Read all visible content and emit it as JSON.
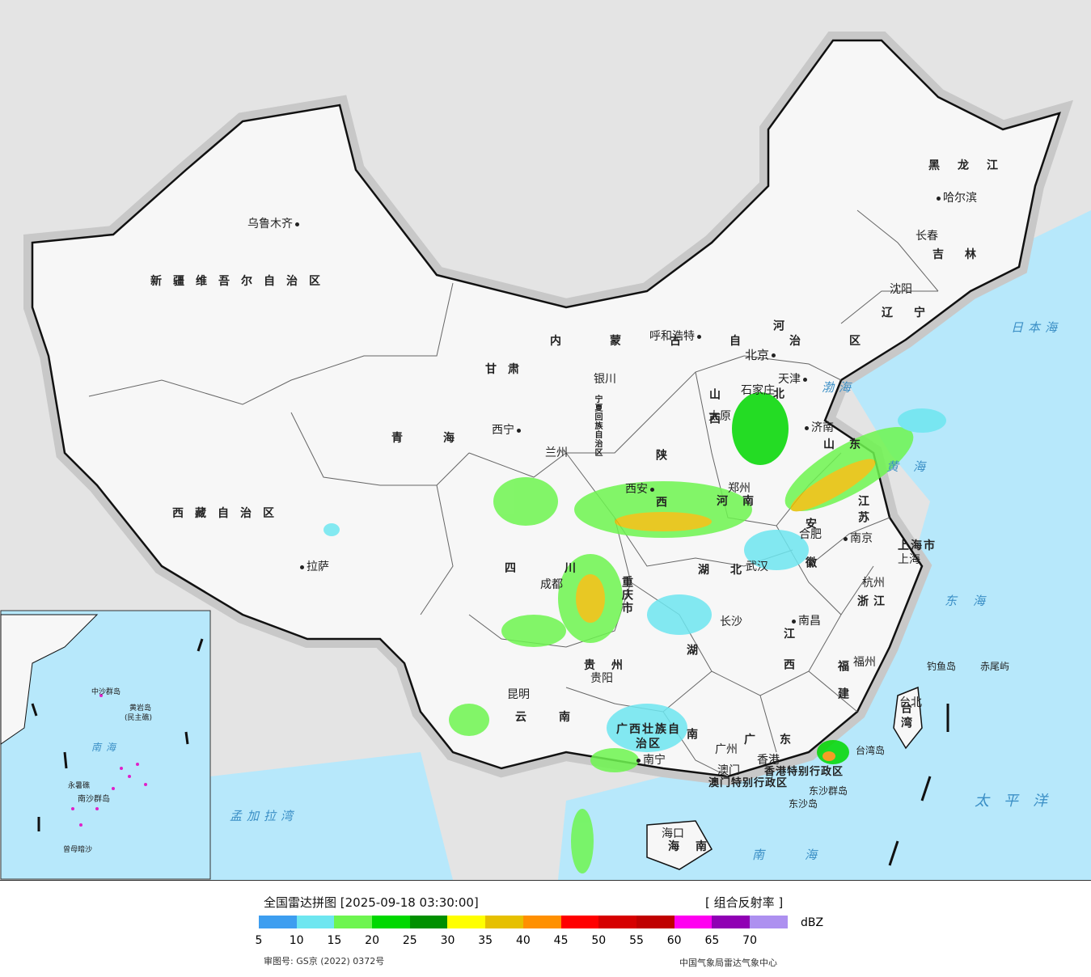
{
  "map": {
    "provinces": {
      "xinjiang": "新疆维吾尔自治区",
      "xizang": "西藏自治区",
      "qinghai": "青海",
      "gansu": "甘肃",
      "neimenggu": "内蒙古自治区",
      "ningxia": "宁夏回族自治区",
      "shanxi": "山西",
      "shaanxi": "陕西",
      "henan": "河南",
      "hebei": "河北",
      "shandong": "山东",
      "sichuan": "四川",
      "chongqing": "重庆市",
      "hubei": "湖北",
      "hunan": "湖南",
      "guizhou": "贵州",
      "yunnan": "云南",
      "guangxi": "广西壮族自治区",
      "guangdong": "广东",
      "jiangxi": "江西",
      "fujian": "福建",
      "zhejiang": "浙江",
      "anhui": "安徽",
      "jiangsu": "江苏",
      "shanghai": "上海市",
      "heilongjiang": "黑龙江",
      "jilin": "吉林",
      "liaoning": "辽宁",
      "taiwan": "台湾",
      "hainan": "海南",
      "hk": "香港特别行政区",
      "macau": "澳门特别行政区"
    },
    "cities": {
      "urumqi": "乌鲁木齐",
      "lhasa": "拉萨",
      "xining": "西宁",
      "lanzhou": "兰州",
      "yinchuan": "银川",
      "hohhot": "呼和浩特",
      "beijing": "北京",
      "tianjin": "天津",
      "shijiazhuang": "石家庄",
      "taiyuan": "太原",
      "jinan": "济南",
      "zhengzhou": "郑州",
      "xian": "西安",
      "chengdu": "成都",
      "wuhan": "武汉",
      "hefei": "合肥",
      "nanjing": "南京",
      "shanghai": "上海",
      "hangzhou": "杭州",
      "changsha": "长沙",
      "nanchang": "南昌",
      "fuzhou": "福州",
      "taipei": "台北",
      "guiyang": "贵阳",
      "kunming": "昆明",
      "nanning": "南宁",
      "guangzhou": "广州",
      "hongkong": "香港",
      "macau": "澳门",
      "haikou": "海口",
      "harbin": "哈尔滨",
      "changchun": "长春",
      "shenyang": "沈阳"
    },
    "seas": {
      "japan_sea": "日本海",
      "bohai": "渤海",
      "yellow_sea": "黄海",
      "east_sea": "东海",
      "pacific": "太平洋",
      "south_sea": "南海",
      "bengal": "孟加拉湾"
    },
    "islands": {
      "diaoyu": "钓鱼岛",
      "chiwei": "赤尾屿",
      "taiwan_island": "台湾岛",
      "dongsha_islands": "东沙群岛",
      "dongsha_island": "东沙岛"
    },
    "inset": {
      "south_sea": "南海",
      "zhongsha": "中沙群岛",
      "huangyan": "黄岩岛",
      "minzhu_reef": "(民主礁)",
      "yongshu": "永暑礁",
      "nansha": "南沙群岛",
      "zengmu": "曾母暗沙"
    }
  },
  "legend": {
    "title": "全国雷达拼图 [2025-09-18 03:30:00]",
    "product": "[ 组合反射率 ]",
    "unit": "dBZ",
    "ticks": [
      "5",
      "10",
      "15",
      "20",
      "25",
      "30",
      "35",
      "40",
      "45",
      "50",
      "55",
      "60",
      "65",
      "70"
    ],
    "colors": [
      "#3d9ef0",
      "#6ee6f0",
      "#6ef550",
      "#00d800",
      "#009000",
      "#ffff00",
      "#e6c000",
      "#ff9000",
      "#ff0000",
      "#d60000",
      "#c00000",
      "#ff00f0",
      "#9000b4",
      "#ad90f0"
    ],
    "approval": "审图号: GS京 (2022) 0372号",
    "agency": "中国气象局雷达气象中心"
  }
}
